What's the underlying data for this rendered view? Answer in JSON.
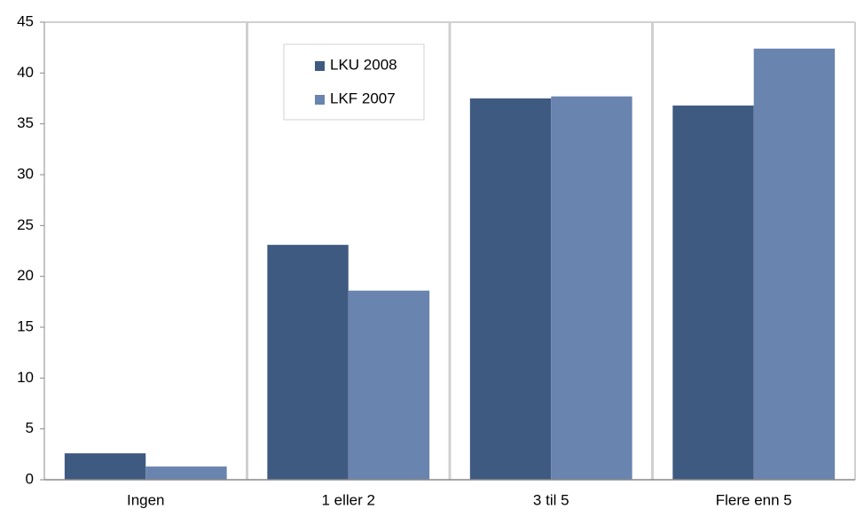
{
  "chart_data": {
    "type": "bar",
    "categories": [
      "Ingen",
      "1 eller 2",
      "3 til 5",
      "Flere enn 5"
    ],
    "series": [
      {
        "name": "LKU 2008",
        "color": "#3f5a80",
        "values": [
          2.6,
          23.1,
          37.5,
          36.8
        ]
      },
      {
        "name": "LKF 2007",
        "color": "#6a84b0",
        "values": [
          1.3,
          18.6,
          37.7,
          42.4
        ]
      }
    ],
    "ylim": [
      0,
      45
    ],
    "yticks": [
      0,
      5,
      10,
      15,
      20,
      25,
      30,
      35,
      40,
      45
    ],
    "grid": false,
    "legend": "top"
  }
}
